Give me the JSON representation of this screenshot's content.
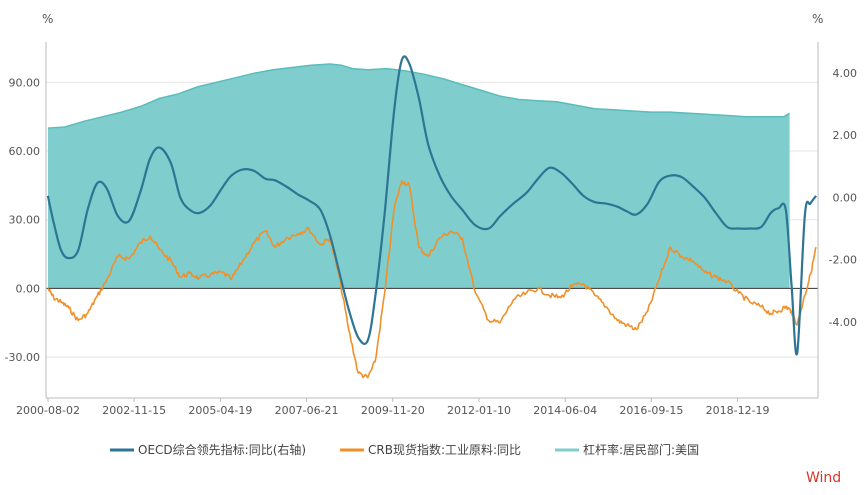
{
  "chart_data": {
    "type": "line",
    "y_left_unit": "%",
    "y_right_unit": "%",
    "y_left_lim": [
      -40,
      105
    ],
    "y_right_lim": [
      -5.867,
      4.8
    ],
    "y_left_ticks": [
      "90.00",
      "60.00",
      "30.00",
      "0.00",
      "-30.00"
    ],
    "y_left_tick_values": [
      90,
      60,
      30,
      0,
      -30
    ],
    "y_right_ticks": [
      "4.00",
      "2.00",
      "0.00",
      "-2.00",
      "-4.00"
    ],
    "y_right_tick_values": [
      4,
      2,
      0,
      -2,
      -4
    ],
    "x_ticks": [
      "2000-08-02",
      "2002-11-15",
      "2005-04-19",
      "2007-06-21",
      "2009-11-20",
      "2012-01-10",
      "2014-06-04",
      "2016-09-15",
      "2018-12-19"
    ],
    "x_range": [
      2000.5,
      2020.9
    ],
    "grid": true,
    "legend_position": "bottom",
    "watermark": "Wind",
    "colors": {
      "oecd": "#2e7594",
      "crb": "#f0902a",
      "leverage": "#7fcdcd",
      "leverage_line": "#5bbcbc",
      "grid": "#e6e6e6",
      "zero": "#333333",
      "watermark": "#d9342b"
    },
    "series": [
      {
        "name": "OECD综合领先指标:同比(右轴)",
        "axis": "right",
        "kind": "line",
        "x": [
          2000.55,
          2000.7,
          2000.9,
          2001.1,
          2001.35,
          2001.6,
          2001.85,
          2002.1,
          2002.4,
          2002.7,
          2003.0,
          2003.25,
          2003.5,
          2003.8,
          2004.05,
          2004.3,
          2004.55,
          2004.85,
          2005.15,
          2005.4,
          2005.7,
          2006.0,
          2006.3,
          2006.55,
          2006.85,
          2007.15,
          2007.45,
          2007.75,
          2008.0,
          2008.25,
          2008.5,
          2008.75,
          2009.0,
          2009.2,
          2009.45,
          2009.7,
          2009.9,
          2010.1,
          2010.35,
          2010.6,
          2010.9,
          2011.2,
          2011.5,
          2011.85,
          2012.2,
          2012.5,
          2012.85,
          2013.2,
          2013.5,
          2013.8,
          2014.1,
          2014.4,
          2014.7,
          2015.0,
          2015.3,
          2015.6,
          2015.85,
          2016.1,
          2016.4,
          2016.7,
          2017.0,
          2017.3,
          2017.6,
          2017.9,
          2018.2,
          2018.5,
          2018.8,
          2019.1,
          2019.4,
          2019.65,
          2019.85,
          2020.05,
          2020.2,
          2020.35,
          2020.55,
          2020.7,
          2020.85
        ],
        "y": [
          0.05,
          -0.8,
          -1.7,
          -1.95,
          -1.7,
          -0.4,
          0.45,
          0.3,
          -0.6,
          -0.75,
          0.2,
          1.25,
          1.6,
          1.1,
          0.0,
          -0.4,
          -0.5,
          -0.25,
          0.3,
          0.7,
          0.9,
          0.85,
          0.6,
          0.55,
          0.35,
          0.1,
          -0.1,
          -0.4,
          -1.2,
          -2.4,
          -3.6,
          -4.5,
          -4.6,
          -3.2,
          -0.5,
          2.8,
          4.4,
          4.3,
          3.2,
          1.7,
          0.7,
          0.05,
          -0.4,
          -0.9,
          -1.0,
          -0.6,
          -0.2,
          0.15,
          0.6,
          0.95,
          0.8,
          0.45,
          0.05,
          -0.15,
          -0.2,
          -0.3,
          -0.45,
          -0.55,
          -0.2,
          0.5,
          0.7,
          0.65,
          0.35,
          0.0,
          -0.5,
          -0.95,
          -1.0,
          -1.0,
          -0.95,
          -0.5,
          -0.35,
          -0.4,
          -2.8,
          -5.0,
          -0.6,
          -0.2,
          0.05
        ]
      },
      {
        "name": "CRB现货指数:工业原料:同比",
        "axis": "left",
        "kind": "line",
        "x": [
          2000.55,
          2000.7,
          2000.9,
          2001.1,
          2001.35,
          2001.6,
          2001.85,
          2002.1,
          2002.4,
          2002.7,
          2003.0,
          2003.25,
          2003.5,
          2003.8,
          2004.05,
          2004.3,
          2004.55,
          2004.85,
          2005.15,
          2005.4,
          2005.7,
          2006.0,
          2006.3,
          2006.55,
          2006.85,
          2007.15,
          2007.45,
          2007.75,
          2008.0,
          2008.25,
          2008.5,
          2008.75,
          2009.0,
          2009.2,
          2009.45,
          2009.7,
          2009.9,
          2010.1,
          2010.35,
          2010.6,
          2010.9,
          2011.2,
          2011.5,
          2011.85,
          2012.2,
          2012.5,
          2012.85,
          2013.2,
          2013.5,
          2013.8,
          2014.1,
          2014.4,
          2014.7,
          2015.0,
          2015.3,
          2015.6,
          2015.85,
          2016.1,
          2016.4,
          2016.7,
          2017.0,
          2017.3,
          2017.6,
          2017.9,
          2018.2,
          2018.5,
          2018.8,
          2019.1,
          2019.4,
          2019.65,
          2019.85,
          2020.05,
          2020.2,
          2020.35,
          2020.55,
          2020.7,
          2020.85
        ],
        "y": [
          0.0,
          -4.0,
          -6.0,
          -8.5,
          -14.0,
          -11.0,
          -3.5,
          3.5,
          14.0,
          13.0,
          20.0,
          23.0,
          17.0,
          12.0,
          5.0,
          6.5,
          4.5,
          6.0,
          7.0,
          4.0,
          12.0,
          20.0,
          25.0,
          18.0,
          22.0,
          24.0,
          26.0,
          19.0,
          22.0,
          5.0,
          -18.0,
          -37.0,
          -39.0,
          -32.0,
          -2.0,
          35.0,
          47.0,
          45.0,
          18.0,
          14.0,
          22.0,
          25.0,
          22.0,
          -2.0,
          -14.0,
          -15.0,
          -5.0,
          -2.0,
          0.0,
          -3.0,
          -4.0,
          1.0,
          2.0,
          -3.0,
          -8.0,
          -14.0,
          -16.0,
          -18.0,
          -10.0,
          4.0,
          18.0,
          14.0,
          12.0,
          7.0,
          5.0,
          3.0,
          -2.0,
          -6.0,
          -8.0,
          -11.0,
          -10.0,
          -8.0,
          -10.0,
          -16.0,
          -3.0,
          6.0,
          18.0
        ]
      },
      {
        "name": "杠杆率:居民部门:美国",
        "axis": "left",
        "kind": "area",
        "x": [
          2000.55,
          2001.0,
          2001.5,
          2002.0,
          2002.5,
          2003.0,
          2003.5,
          2004.0,
          2004.5,
          2005.0,
          2005.5,
          2006.0,
          2006.5,
          2007.0,
          2007.5,
          2008.0,
          2008.3,
          2008.6,
          2009.0,
          2009.5,
          2010.0,
          2010.5,
          2011.0,
          2011.5,
          2012.0,
          2012.5,
          2013.0,
          2013.5,
          2014.0,
          2014.5,
          2015.0,
          2015.5,
          2016.0,
          2016.5,
          2017.0,
          2017.5,
          2018.0,
          2018.5,
          2019.0,
          2019.5,
          2020.0,
          2020.15
        ],
        "y": [
          70.0,
          70.5,
          73.0,
          75.0,
          77.0,
          79.5,
          83.0,
          85.0,
          88.0,
          90.0,
          92.0,
          94.0,
          95.5,
          96.5,
          97.5,
          98.0,
          97.5,
          96.0,
          95.5,
          96.0,
          95.0,
          93.5,
          91.5,
          89.0,
          86.5,
          84.0,
          82.5,
          82.0,
          81.5,
          80.0,
          78.5,
          78.0,
          77.5,
          77.0,
          77.0,
          76.5,
          76.0,
          75.5,
          75.0,
          75.0,
          75.0,
          76.5
        ]
      }
    ]
  }
}
